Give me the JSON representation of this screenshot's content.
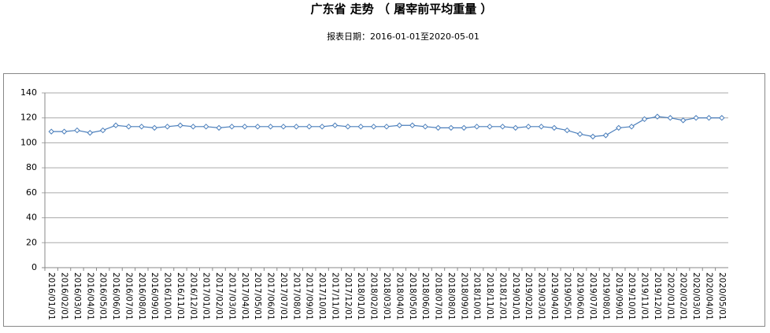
{
  "chart_data": {
    "type": "line",
    "title": "广东省 走势 （ 屠宰前平均重量 ）",
    "subtitle": "报表日期：2016-01-01至2020-05-01",
    "categories": [
      "2016/01/01",
      "2016/02/01",
      "2016/03/01",
      "2016/04/01",
      "2016/05/01",
      "2016/06/01",
      "2016/07/01",
      "2016/08/01",
      "2016/09/01",
      "2016/10/01",
      "2016/11/01",
      "2016/12/01",
      "2017/01/01",
      "2017/02/01",
      "2017/03/01",
      "2017/04/01",
      "2017/05/01",
      "2017/06/01",
      "2017/07/01",
      "2017/08/01",
      "2017/09/01",
      "2017/10/01",
      "2017/11/01",
      "2017/12/01",
      "2018/01/01",
      "2018/02/01",
      "2018/03/01",
      "2018/04/01",
      "2018/05/01",
      "2018/06/01",
      "2018/07/01",
      "2018/08/01",
      "2018/09/01",
      "2018/10/01",
      "2018/11/01",
      "2018/12/01",
      "2019/01/01",
      "2019/02/01",
      "2019/03/01",
      "2019/04/01",
      "2019/05/01",
      "2019/06/01",
      "2019/07/01",
      "2019/08/01",
      "2019/09/01",
      "2019/10/01",
      "2019/11/01",
      "2019/12/01",
      "2020/01/01",
      "2020/02/01",
      "2020/03/01",
      "2020/04/01",
      "2020/05/01"
    ],
    "values": [
      109,
      109,
      110,
      108,
      110,
      114,
      113,
      113,
      112,
      113,
      114,
      113,
      113,
      112,
      113,
      113,
      113,
      113,
      113,
      113,
      113,
      113,
      114,
      113,
      113,
      113,
      113,
      114,
      114,
      113,
      112,
      112,
      112,
      113,
      113,
      113,
      112,
      113,
      113,
      112,
      110,
      107,
      105,
      106,
      112,
      113,
      119,
      121,
      120,
      118,
      120,
      120,
      120
    ],
    "color": "#4a7ebb",
    "ylim": [
      0,
      140
    ],
    "yticks": [
      0,
      20,
      40,
      60,
      80,
      100,
      120,
      140
    ],
    "grid": true
  }
}
